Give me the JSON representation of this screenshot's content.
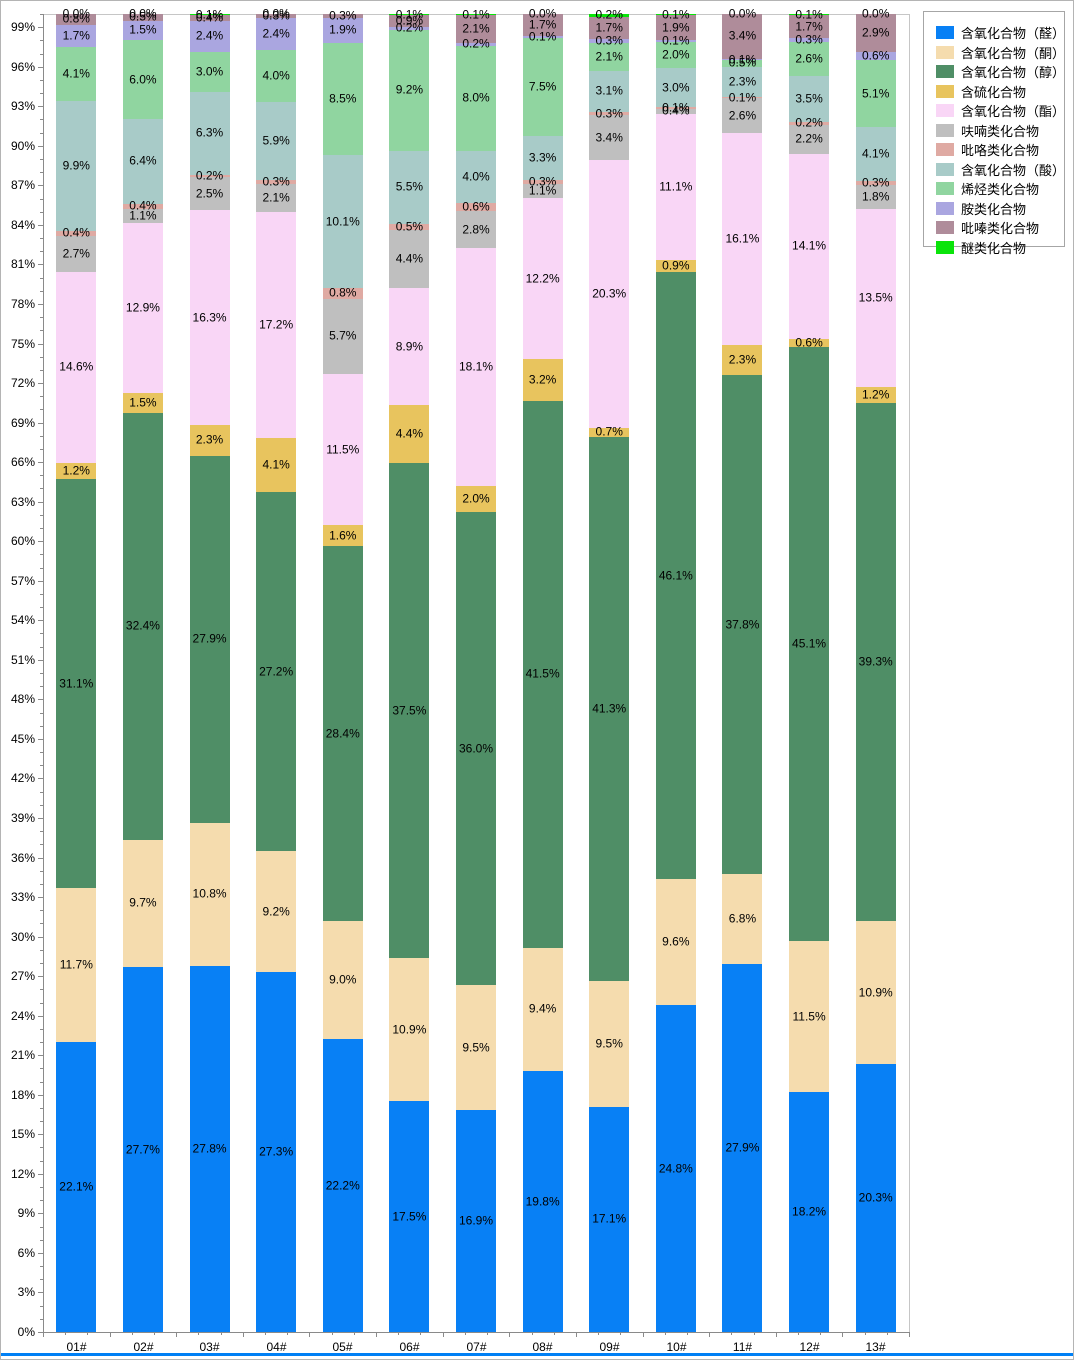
{
  "window": {
    "background": "#ffffff",
    "border_color": "#b4b4b4",
    "bottom_accent_color": "#0080f5"
  },
  "axis_colors": {
    "axis_line": "#8a8a8a",
    "plot_border": "#c6c6c6",
    "text": "#000000"
  },
  "chart_data": {
    "type": "bar",
    "subtype": "stacked-100-percent-column",
    "title": "",
    "xlabel": "",
    "ylabel": "",
    "grid": "top-line-only",
    "legend_position": "top-right",
    "data_label_format": "0.0%",
    "y_axis": {
      "min": 0,
      "max": 100,
      "major_tick_step": 3,
      "minor_tick_step": 1,
      "label_suffix": "%"
    },
    "categories": [
      "01#",
      "02#",
      "03#",
      "04#",
      "05#",
      "06#",
      "07#",
      "08#",
      "09#",
      "10#",
      "11#",
      "12#",
      "13#"
    ],
    "series": [
      {
        "name": "含氧化合物（醛）",
        "color": "#0880f5",
        "values": [
          22.1,
          27.7,
          27.8,
          27.3,
          22.2,
          17.5,
          16.9,
          19.8,
          17.1,
          24.8,
          27.9,
          18.2,
          20.3
        ]
      },
      {
        "name": "含氧化合物（酮）",
        "color": "#f5dcae",
        "values": [
          11.7,
          9.7,
          10.8,
          9.2,
          9.0,
          10.9,
          9.5,
          9.4,
          9.5,
          9.6,
          6.8,
          11.5,
          10.9
        ]
      },
      {
        "name": "含氧化合物（醇）",
        "color": "#4f8e66",
        "values": [
          31.1,
          32.4,
          27.9,
          27.2,
          28.4,
          37.5,
          36.0,
          41.5,
          41.3,
          46.1,
          37.8,
          45.1,
          39.3
        ]
      },
      {
        "name": "含硫化合物",
        "color": "#e8c45e",
        "values": [
          1.2,
          1.5,
          2.3,
          4.1,
          1.6,
          4.4,
          2.0,
          3.2,
          0.7,
          0.9,
          2.3,
          0.6,
          1.2
        ]
      },
      {
        "name": "含氧化合物（酯）",
        "color": "#f9d6f6",
        "values": [
          14.6,
          12.9,
          16.3,
          17.2,
          11.5,
          8.9,
          18.1,
          12.2,
          20.3,
          11.1,
          16.1,
          14.1,
          13.5
        ]
      },
      {
        "name": "呋喃类化合物",
        "color": "#bfbfbf",
        "values": [
          2.7,
          1.1,
          2.5,
          2.1,
          5.7,
          4.4,
          2.8,
          1.1,
          3.4,
          0.4,
          2.6,
          2.2,
          1.8
        ]
      },
      {
        "name": "吡咯类化合物",
        "color": "#dfaaa3",
        "values": [
          0.4,
          0.4,
          0.2,
          0.3,
          0.8,
          0.5,
          0.6,
          0.3,
          0.3,
          0.1,
          0.1,
          0.2,
          0.3
        ]
      },
      {
        "name": "含氧化合物（酸）",
        "color": "#a8cbc8",
        "values": [
          9.9,
          6.4,
          6.3,
          5.9,
          10.1,
          5.5,
          4.0,
          3.3,
          3.1,
          3.0,
          2.3,
          3.5,
          4.1
        ]
      },
      {
        "name": "烯烃类化合物",
        "color": "#90d5a0",
        "values": [
          4.1,
          6.0,
          3.0,
          4.0,
          8.5,
          9.2,
          8.0,
          7.5,
          2.1,
          2.0,
          0.5,
          2.6,
          5.1
        ]
      },
      {
        "name": "胺类化合物",
        "color": "#aaa6e0",
        "values": [
          1.7,
          1.5,
          2.4,
          2.4,
          1.9,
          0.2,
          0.2,
          0.1,
          0.3,
          0.1,
          0.1,
          0.3,
          0.6
        ]
      },
      {
        "name": "吡嗪类化合物",
        "color": "#af8c9a",
        "values": [
          0.8,
          0.5,
          0.4,
          0.3,
          0.3,
          0.9,
          2.1,
          1.7,
          1.7,
          1.9,
          3.4,
          1.7,
          2.9
        ]
      },
      {
        "name": "醚类化合物",
        "color": "#0ae40a",
        "values": [
          0.0,
          0.0,
          0.1,
          0.0,
          null,
          0.1,
          0.1,
          0.0,
          0.2,
          0.1,
          0.0,
          0.1,
          0.0
        ]
      }
    ]
  }
}
